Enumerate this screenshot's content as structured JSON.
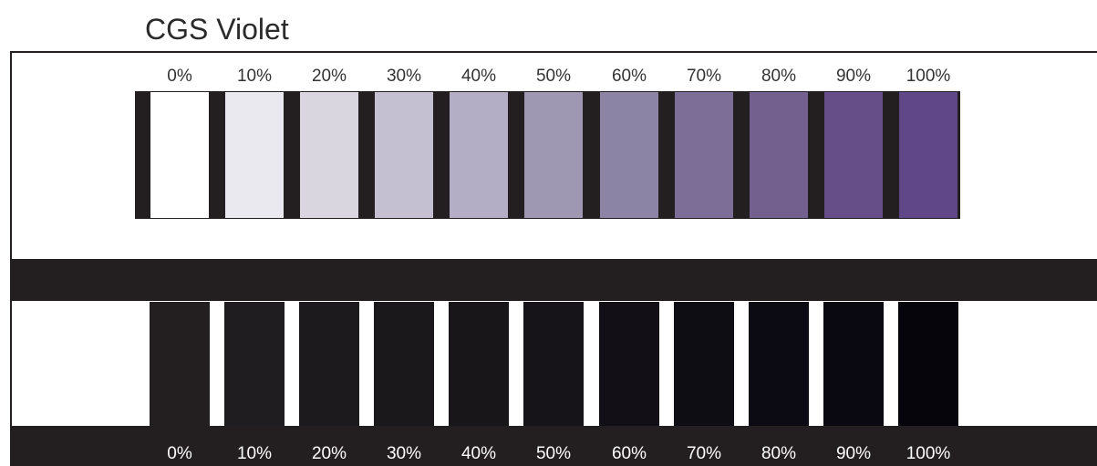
{
  "title": "CGS Violet",
  "top_labels": [
    "0%",
    "10%",
    "20%",
    "30%",
    "40%",
    "50%",
    "60%",
    "70%",
    "80%",
    "90%",
    "100%"
  ],
  "bottom_labels": [
    "0%",
    "10%",
    "20%",
    "30%",
    "40%",
    "50%",
    "60%",
    "70%",
    "80%",
    "90%",
    "100%"
  ],
  "top_colors": [
    "#ffffff",
    "#eae9ef",
    "#d9d6df",
    "#c5c0d1",
    "#b3aec5",
    "#9f98b3",
    "#8c84a5",
    "#7d6e98",
    "#73608e",
    "#664f88",
    "#5f4788"
  ],
  "bottom_colors": [
    "#231f20",
    "#1f1d1f",
    "#1c1a1d",
    "#1a181b",
    "#181619",
    "#161418",
    "#121016",
    "#0f0d14",
    "#0c0a12",
    "#0a0810",
    "#06050b"
  ]
}
